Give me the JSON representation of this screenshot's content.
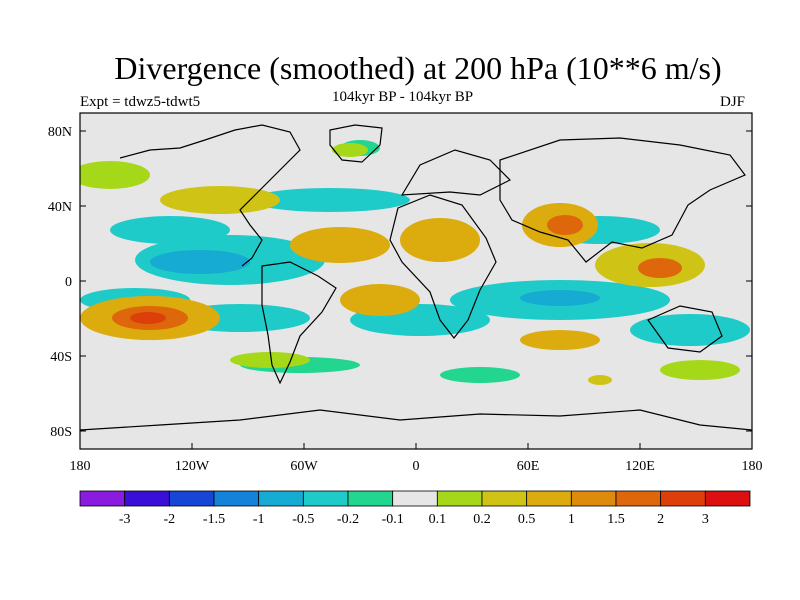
{
  "map": {
    "title": "Divergence (smoothed) at 200 hPa (10**6 m/s)",
    "subtitle": "104kyr BP - 104kyr BP",
    "experiment_label": "Expt = tdwz5-tdwt5",
    "season_label": "DJF",
    "lat_ticks": [
      "80N",
      "40N",
      "0",
      "40S",
      "80S"
    ],
    "lon_ticks": [
      "180",
      "120W",
      "60W",
      "0",
      "60E",
      "120E",
      "180"
    ],
    "background_color": "#e6e6e6",
    "colorbar": {
      "colors": [
        "#8a1ce0",
        "#3a10d8",
        "#1746d6",
        "#1382d9",
        "#16abd3",
        "#1fcbc8",
        "#22d690",
        "#e6e6e6",
        "#a6d81a",
        "#cfc416",
        "#dcac0e",
        "#dc8b0c",
        "#dd670a",
        "#dd3f0a",
        "#dc1010"
      ],
      "labels": [
        "-3",
        "-2",
        "-1.5",
        "-1",
        "-0.5",
        "-0.2",
        "-0.1",
        "0.1",
        "0.2",
        "0.5",
        "1",
        "1.5",
        "2",
        "3"
      ]
    }
  }
}
